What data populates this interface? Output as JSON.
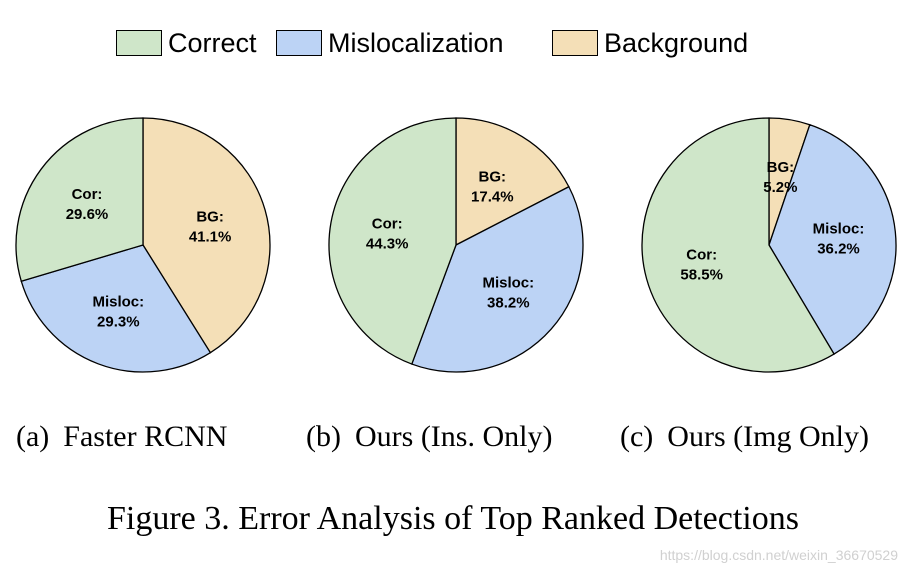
{
  "colors": {
    "correct": "#cfe6c9",
    "misloc": "#bcd3f5",
    "background": "#f4dfb7"
  },
  "legend": [
    {
      "label": "Correct",
      "color_key": "correct"
    },
    {
      "label": "Mislocalization",
      "color_key": "misloc"
    },
    {
      "label": "Background",
      "color_key": "background"
    }
  ],
  "chart_data": [
    {
      "type": "pie",
      "title": "",
      "subtitle_tag": "(a)",
      "subtitle": "Faster RCNN",
      "slices": [
        {
          "key": "background",
          "label": "BG:",
          "percent_label": "41.1%",
          "value": 41.1
        },
        {
          "key": "misloc",
          "label": "Misloc:",
          "percent_label": "29.3%",
          "value": 29.3
        },
        {
          "key": "correct",
          "label": "Cor:",
          "percent_label": "29.6%",
          "value": 29.6
        }
      ],
      "start": "12 o'clock",
      "direction": "clockwise"
    },
    {
      "type": "pie",
      "title": "",
      "subtitle_tag": "(b)",
      "subtitle": "Ours (Ins. Only)",
      "slices": [
        {
          "key": "background",
          "label": "BG:",
          "percent_label": "17.4%",
          "value": 17.4
        },
        {
          "key": "misloc",
          "label": "Misloc:",
          "percent_label": "38.2%",
          "value": 38.2
        },
        {
          "key": "correct",
          "label": "Cor:",
          "percent_label": "44.3%",
          "value": 44.3
        }
      ],
      "start": "12 o'clock",
      "direction": "clockwise"
    },
    {
      "type": "pie",
      "title": "",
      "subtitle_tag": "(c)",
      "subtitle": "Ours (Img Only)",
      "slices": [
        {
          "key": "background",
          "label": "BG:",
          "percent_label": "5.2%",
          "value": 5.2
        },
        {
          "key": "misloc",
          "label": "Misloc:",
          "percent_label": "36.2%",
          "value": 36.2
        },
        {
          "key": "correct",
          "label": "Cor:",
          "percent_label": "58.5%",
          "value": 58.5
        }
      ],
      "start": "12 o'clock",
      "direction": "clockwise"
    }
  ],
  "figure_caption": "Figure 3. Error Analysis of Top Ranked Detections",
  "watermark": "https://blog.csdn.net/weixin_36670529"
}
